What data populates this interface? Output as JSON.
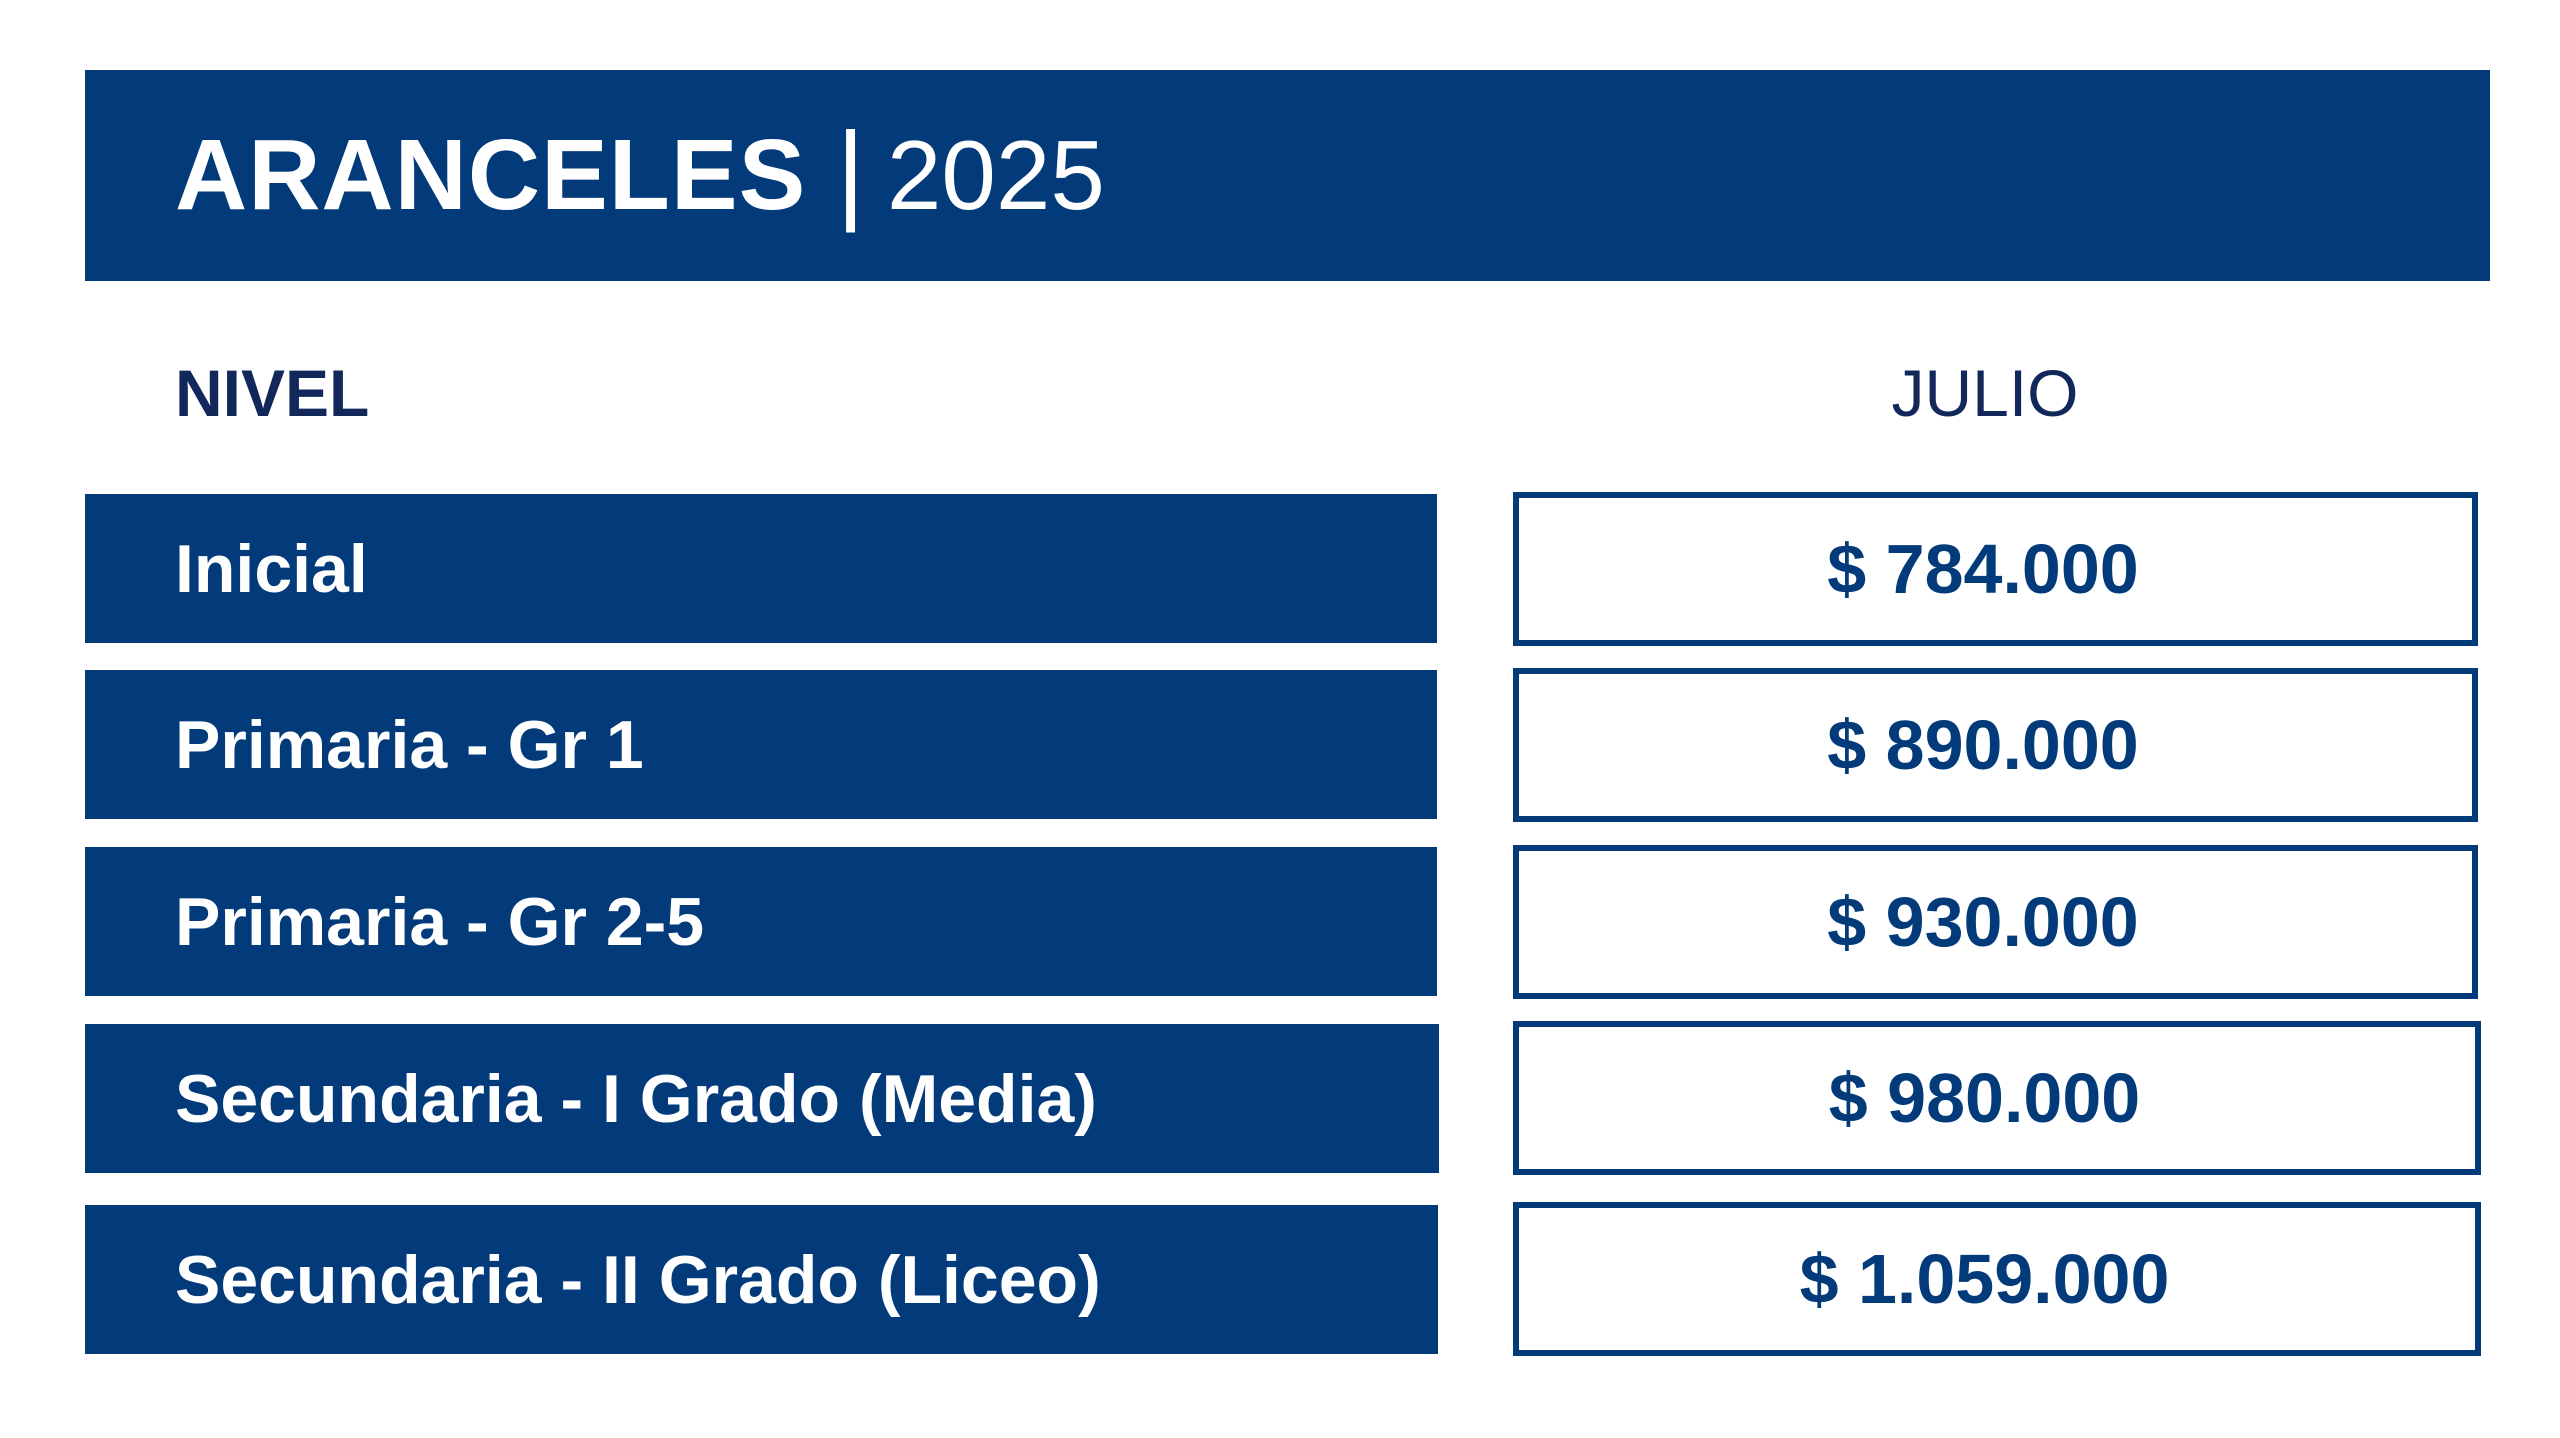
{
  "header": {
    "title": "ARANCELES",
    "separator": "|",
    "year": "2025"
  },
  "columns": {
    "level": "NIVEL",
    "month": "JULIO"
  },
  "rows": [
    {
      "level": "Inicial",
      "price": "$ 784.000"
    },
    {
      "level": "Primaria - Gr 1",
      "price": "$ 890.000"
    },
    {
      "level": "Primaria - Gr 2-5",
      "price": "$ 930.000"
    },
    {
      "level": "Secundaria - I Grado (Media)",
      "price": "$ 980.000"
    },
    {
      "level": "Secundaria - II Grado (Liceo)",
      "price": "$ 1.059.000"
    }
  ],
  "colors": {
    "brand": "#023a7a",
    "heading_text": "#12285a",
    "background": "#ffffff"
  }
}
